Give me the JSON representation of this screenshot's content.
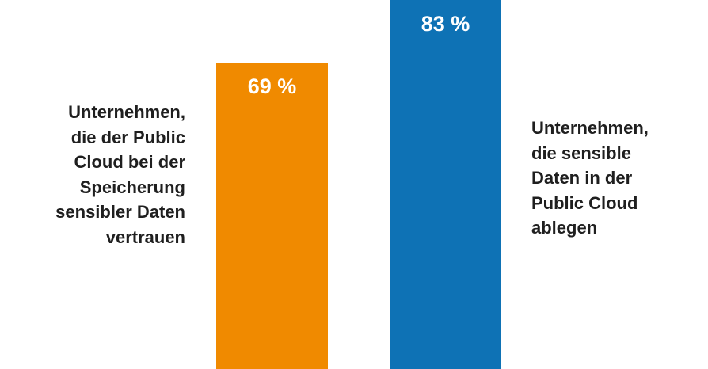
{
  "chart_data": {
    "type": "bar",
    "categories": [
      "Unternehmen, die der Public Cloud bei der Speicherung sensibler Daten vertrauen",
      "Unternehmen, die sensible Daten in der Public Cloud ablegen"
    ],
    "values": [
      69,
      83
    ],
    "value_labels": [
      "69 %",
      "83 %"
    ],
    "colors": [
      "#f08a00",
      "#0e72b5"
    ],
    "label_lines": [
      [
        "Unternehmen,",
        "die der Public",
        "Cloud bei der",
        "Speicherung",
        "sensibler Daten",
        "vertrauen"
      ],
      [
        "Unternehmen,",
        "die sensible",
        "Daten in der",
        "Public Cloud",
        "ablegen"
      ]
    ],
    "title": "",
    "xlabel": "",
    "ylabel": "",
    "ylim": [
      0,
      83
    ],
    "grid": false,
    "legend": "none"
  }
}
